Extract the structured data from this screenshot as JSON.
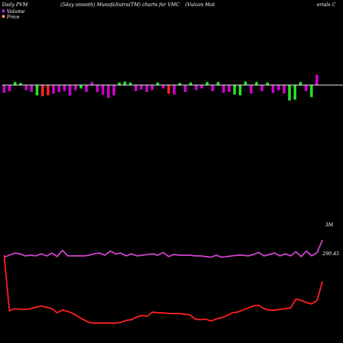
{
  "header": {
    "left": "Daily PVM",
    "middle": "(5day smooth) MunafaSutra(TM) charts for VMC",
    "right_a": "(Vulcan  Mat",
    "right_b": "erials C"
  },
  "legend": {
    "volume": "Volume",
    "price": "Price",
    "volume_color": "#a020f0",
    "price_color": "#ff8c69"
  },
  "colors": {
    "background": "#000000",
    "up": "#cc00cc",
    "down": "#22dd22",
    "red": "#ff2020",
    "price_line": "#ff2020",
    "volume_line": "#cc44cc",
    "baseline": "#ffffff"
  },
  "chart_data": {
    "type": "bar",
    "series": [
      {
        "name": "Volume",
        "values": [
          -0.45,
          -0.35,
          0.3,
          0.2,
          -0.3,
          -0.4,
          -0.6,
          -0.65,
          -0.6,
          -0.5,
          -0.4,
          -0.35,
          -0.6,
          -0.3,
          -0.2,
          -0.4,
          0.3,
          -0.4,
          -0.55,
          -0.75,
          -0.6,
          0.25,
          0.35,
          0.25,
          -0.35,
          -0.25,
          -0.4,
          -0.3,
          0.25,
          -0.2,
          -0.5,
          -0.55,
          0.2,
          -0.4,
          0.25,
          -0.3,
          -0.2,
          0.3,
          -0.35,
          0.3,
          -0.45,
          -0.4,
          -0.55,
          -0.6,
          0.35,
          -0.5,
          0.3,
          -0.35,
          0.25,
          -0.45,
          -0.3,
          -0.5,
          -0.9,
          -0.85,
          0.3,
          -0.35,
          -0.7,
          1.0
        ],
        "bar_colors": [
          "up",
          "up",
          "down",
          "down",
          "up",
          "up",
          "down",
          "red",
          "red",
          "up",
          "up",
          "up",
          "up",
          "up",
          "down",
          "up",
          "up",
          "up",
          "up",
          "up",
          "up",
          "down",
          "down",
          "down",
          "up",
          "up",
          "up",
          "up",
          "down",
          "up",
          "red",
          "up",
          "down",
          "up",
          "down",
          "up",
          "up",
          "down",
          "up",
          "down",
          "up",
          "up",
          "down",
          "down",
          "down",
          "up",
          "down",
          "up",
          "down",
          "up",
          "up",
          "up",
          "down",
          "down",
          "down",
          "up",
          "down",
          "up"
        ]
      },
      {
        "name": "Price",
        "values": [
          378,
          297,
          300,
          299,
          299,
          300,
          302,
          304,
          302,
          300,
          294,
          298,
          296,
          293,
          288,
          284,
          280,
          279,
          279,
          279,
          279,
          279,
          280,
          283,
          284,
          288,
          290,
          289,
          295,
          294,
          294,
          293,
          293,
          293,
          292,
          291,
          285,
          284,
          285,
          282,
          285,
          287,
          290,
          294,
          295,
          298,
          301,
          304,
          305,
          300,
          298,
          298,
          299,
          300,
          301,
          314,
          312,
          309,
          307,
          312,
          340
        ]
      },
      {
        "name": "Volume line",
        "values": [
          375,
          378,
          381,
          380,
          377,
          378,
          377,
          380,
          377,
          381,
          376,
          385,
          377,
          377,
          377,
          377,
          378,
          380,
          381,
          378,
          384,
          380,
          381,
          377,
          380,
          377,
          378,
          379,
          380,
          378,
          382,
          376,
          379,
          378,
          378,
          378,
          377,
          377,
          376,
          375,
          378,
          375,
          376,
          377,
          378,
          378,
          377,
          379,
          382,
          377,
          379,
          381,
          377,
          380,
          377,
          383,
          376,
          384,
          377,
          382,
          400
        ]
      }
    ],
    "price_annotation": "290.45",
    "volume_annotation": "3M"
  }
}
